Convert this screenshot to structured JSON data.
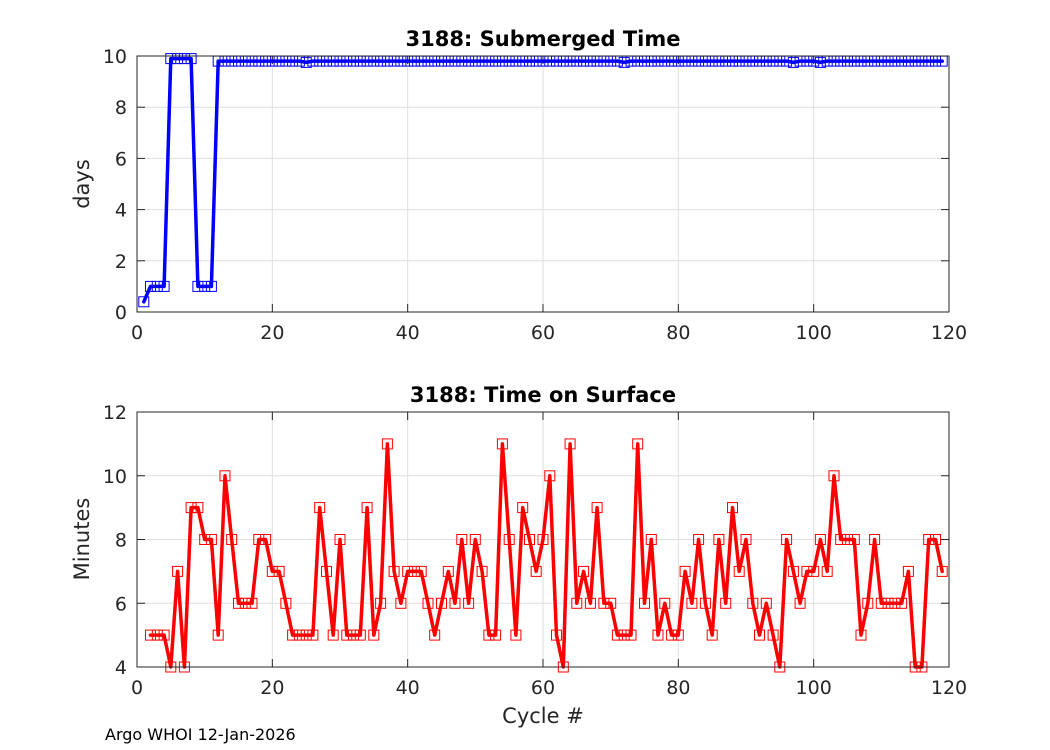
{
  "footer": "Argo WHOI 12-Jan-2026",
  "chart_data": [
    {
      "type": "line",
      "title": "3188: Submerged Time",
      "xlabel": "",
      "ylabel": "days",
      "xlim": [
        0,
        120
      ],
      "ylim": [
        0,
        10
      ],
      "xticks": [
        0,
        20,
        40,
        60,
        80,
        100,
        120
      ],
      "yticks": [
        0,
        2,
        4,
        6,
        8,
        10
      ],
      "grid": true,
      "color": "#0000ff",
      "marker": "square",
      "series": [
        {
          "x": [
            1,
            2,
            3,
            4,
            5,
            6,
            7,
            8,
            9,
            10,
            11,
            12,
            13,
            14,
            15,
            16,
            17,
            18,
            19,
            20,
            21,
            22,
            23,
            24,
            25,
            26,
            27,
            28,
            29,
            30,
            31,
            32,
            33,
            34,
            35,
            36,
            37,
            38,
            39,
            40,
            41,
            42,
            43,
            44,
            45,
            46,
            47,
            48,
            49,
            50,
            51,
            52,
            53,
            54,
            55,
            56,
            57,
            58,
            59,
            60,
            61,
            62,
            63,
            64,
            65,
            66,
            67,
            68,
            69,
            70,
            71,
            72,
            73,
            74,
            75,
            76,
            77,
            78,
            79,
            80,
            81,
            82,
            83,
            84,
            85,
            86,
            87,
            88,
            89,
            90,
            91,
            92,
            93,
            94,
            95,
            96,
            97,
            98,
            99,
            100,
            101,
            102,
            103,
            104,
            105,
            106,
            107,
            108,
            109,
            110,
            111,
            112,
            113,
            114,
            115,
            116,
            117,
            118,
            119
          ],
          "y": [
            0.4,
            1,
            1,
            1,
            9.9,
            9.9,
            9.9,
            9.9,
            1,
            1,
            1,
            9.8,
            9.8,
            9.8,
            9.8,
            9.8,
            9.8,
            9.8,
            9.8,
            9.8,
            9.8,
            9.8,
            9.8,
            9.8,
            9.75,
            9.8,
            9.8,
            9.8,
            9.8,
            9.8,
            9.8,
            9.8,
            9.8,
            9.8,
            9.8,
            9.8,
            9.8,
            9.8,
            9.8,
            9.8,
            9.8,
            9.8,
            9.8,
            9.8,
            9.8,
            9.8,
            9.8,
            9.8,
            9.8,
            9.8,
            9.8,
            9.8,
            9.8,
            9.8,
            9.8,
            9.8,
            9.8,
            9.8,
            9.8,
            9.8,
            9.8,
            9.8,
            9.8,
            9.8,
            9.8,
            9.8,
            9.8,
            9.8,
            9.8,
            9.8,
            9.8,
            9.75,
            9.8,
            9.8,
            9.8,
            9.8,
            9.8,
            9.8,
            9.8,
            9.8,
            9.8,
            9.8,
            9.8,
            9.8,
            9.8,
            9.8,
            9.8,
            9.8,
            9.8,
            9.8,
            9.8,
            9.8,
            9.8,
            9.8,
            9.8,
            9.8,
            9.75,
            9.8,
            9.8,
            9.8,
            9.75,
            9.8,
            9.8,
            9.8,
            9.8,
            9.8,
            9.8,
            9.8,
            9.8,
            9.8,
            9.8,
            9.8,
            9.8,
            9.8,
            9.8,
            9.8,
            9.8,
            9.8,
            9.8
          ]
        }
      ]
    },
    {
      "type": "line",
      "title": "3188: Time on Surface",
      "xlabel": "Cycle #",
      "ylabel": "Minutes",
      "xlim": [
        0,
        120
      ],
      "ylim": [
        4,
        12
      ],
      "xticks": [
        0,
        20,
        40,
        60,
        80,
        100,
        120
      ],
      "yticks": [
        4,
        6,
        8,
        10,
        12
      ],
      "grid": true,
      "color": "#ff0000",
      "marker": "square",
      "series": [
        {
          "x": [
            2,
            3,
            4,
            5,
            6,
            7,
            8,
            9,
            10,
            11,
            12,
            13,
            14,
            15,
            16,
            17,
            18,
            19,
            20,
            21,
            22,
            23,
            24,
            25,
            26,
            27,
            28,
            29,
            30,
            31,
            32,
            33,
            34,
            35,
            36,
            37,
            38,
            39,
            40,
            41,
            42,
            43,
            44,
            45,
            46,
            47,
            48,
            49,
            50,
            51,
            52,
            53,
            54,
            55,
            56,
            57,
            58,
            59,
            60,
            61,
            62,
            63,
            64,
            65,
            66,
            67,
            68,
            69,
            70,
            71,
            72,
            73,
            74,
            75,
            76,
            77,
            78,
            79,
            80,
            81,
            82,
            83,
            84,
            85,
            86,
            87,
            88,
            89,
            90,
            91,
            92,
            93,
            94,
            95,
            96,
            97,
            98,
            99,
            100,
            101,
            102,
            103,
            104,
            105,
            106,
            107,
            108,
            109,
            110,
            111,
            112,
            113,
            114,
            115,
            116,
            117,
            118,
            119
          ],
          "y": [
            5,
            5,
            5,
            4,
            7,
            4,
            9,
            9,
            8,
            8,
            5,
            10,
            8,
            6,
            6,
            6,
            8,
            8,
            7,
            7,
            6,
            5,
            5,
            5,
            5,
            9,
            7,
            5,
            8,
            5,
            5,
            5,
            9,
            5,
            6,
            11,
            7,
            6,
            7,
            7,
            7,
            6,
            5,
            6,
            7,
            6,
            8,
            6,
            8,
            7,
            5,
            5,
            11,
            8,
            5,
            9,
            8,
            7,
            8,
            10,
            5,
            4,
            11,
            6,
            7,
            6,
            9,
            6,
            6,
            5,
            5,
            5,
            11,
            6,
            8,
            5,
            6,
            5,
            5,
            7,
            6,
            8,
            6,
            5,
            8,
            6,
            9,
            7,
            8,
            6,
            5,
            6,
            5,
            4,
            8,
            7,
            6,
            7,
            7,
            8,
            7,
            10,
            8,
            8,
            8,
            5,
            6,
            8,
            6,
            6,
            6,
            6,
            7,
            4,
            4,
            8,
            8,
            7
          ]
        }
      ]
    }
  ]
}
